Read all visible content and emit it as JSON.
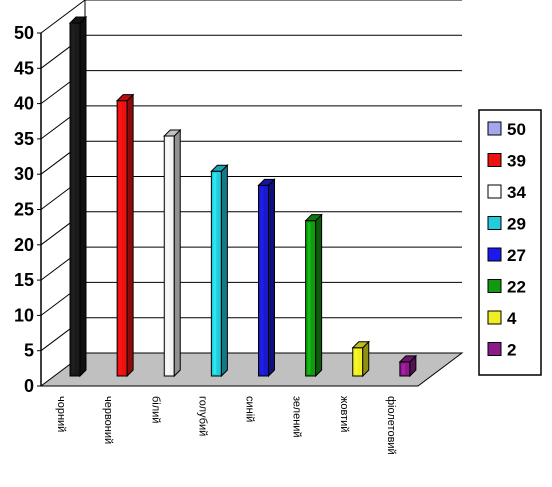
{
  "chart_data": {
    "type": "bar",
    "categories": [
      "чорний",
      "червоний",
      "білий",
      "голубий",
      "синій",
      "зелений",
      "жовтий",
      "фіолетовий"
    ],
    "values": [
      50,
      39,
      34,
      29,
      27,
      22,
      4,
      2
    ],
    "colors": [
      "#1a1a1a",
      "#ee1111",
      "#f2f2f2",
      "#22ccdd",
      "#1a1acc",
      "#119911",
      "#eeee22",
      "#8b1a8b"
    ],
    "legend": {
      "position": "right",
      "entries": [
        "50",
        "39",
        "34",
        "29",
        "27",
        "22",
        "4",
        "2"
      ],
      "swatches": [
        "#a6a6ee",
        "#ee1111",
        "#ffffff",
        "#22ccdd",
        "#1a1aee",
        "#119911",
        "#eeee22",
        "#8b1a8b"
      ]
    },
    "yticks": [
      "0",
      "5",
      "10",
      "15",
      "20",
      "25",
      "30",
      "35",
      "40",
      "45",
      "50"
    ],
    "ylim": [
      0,
      50
    ],
    "grid": true,
    "floor_color": "#c0c0c0",
    "title": "",
    "xlabel": "",
    "ylabel": ""
  }
}
